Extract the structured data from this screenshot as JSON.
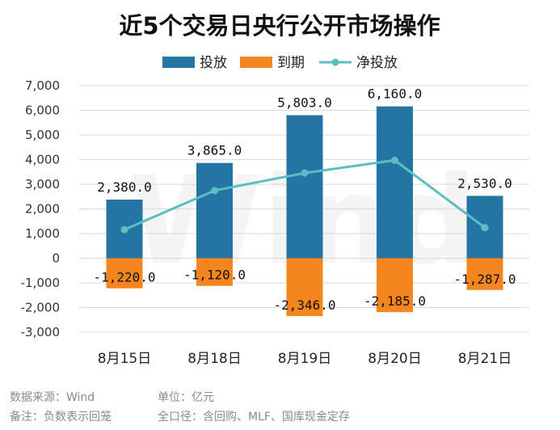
{
  "colors": {
    "invest": "#2475a4",
    "mature": "#f5861f",
    "net": "#5bbfc2",
    "grid": "#d9d9d9"
  },
  "notes": {
    "source": "数据来源：Wind",
    "unit": "单位：亿元",
    "remark": "备注：负数表示回笼",
    "caliber": "全口径：含回购、MLF、国库现金定存"
  },
  "watermark": "Wind",
  "chart_data": {
    "type": "bar",
    "title": "近5个交易日央行公开市场操作",
    "categories": [
      "8月15日",
      "8月18日",
      "8月19日",
      "8月20日",
      "8月21日"
    ],
    "series": [
      {
        "name": "投放",
        "type": "bar",
        "values": [
          2380.0,
          3865.0,
          5803.0,
          6160.0,
          2530.0
        ]
      },
      {
        "name": "到期",
        "type": "bar",
        "values": [
          -1220.0,
          -1120.0,
          -2346.0,
          -2185.0,
          -1287.0
        ]
      },
      {
        "name": "净投放",
        "type": "line",
        "values": [
          1160.0,
          2745.0,
          3457.0,
          3975.0,
          1243.0
        ]
      }
    ],
    "data_labels": {
      "invest": [
        "2,380.0",
        "3,865.0",
        "5,803.0",
        "6,160.0",
        "2,530.0"
      ],
      "mature": [
        "-1,220.0",
        "-1,120.0",
        "-2,346.0",
        "-2,185.0",
        "-1,287.0"
      ]
    },
    "yticks": [
      "7,000",
      "6,000",
      "5,000",
      "4,000",
      "3,000",
      "2,000",
      "1,000",
      "0",
      "-1,000",
      "-2,000",
      "-3,000"
    ],
    "ylim": [
      -3000,
      7000
    ],
    "xlabel": "",
    "ylabel": "",
    "grid": true,
    "legend_position": "top-center"
  }
}
